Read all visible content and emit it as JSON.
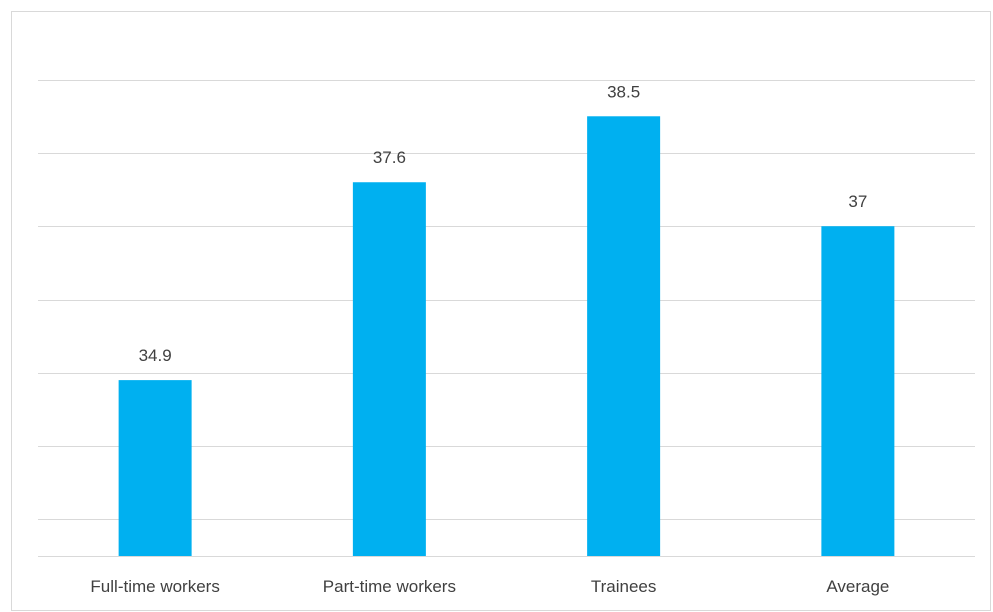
{
  "chart_data": {
    "type": "bar",
    "categories": [
      "Full-time workers",
      "Part-time workers",
      "Trainees",
      "Average"
    ],
    "values": [
      34.9,
      37.6,
      38.5,
      37
    ],
    "value_labels": [
      "34.9",
      "37.6",
      "38.5",
      "37"
    ],
    "title": "",
    "xlabel": "",
    "ylabel": "",
    "ylim": [
      32.5,
      39.5
    ],
    "grid": true,
    "legend": "none",
    "bar_color": "#00B0F0",
    "grid_color": "#d9d9d9"
  }
}
